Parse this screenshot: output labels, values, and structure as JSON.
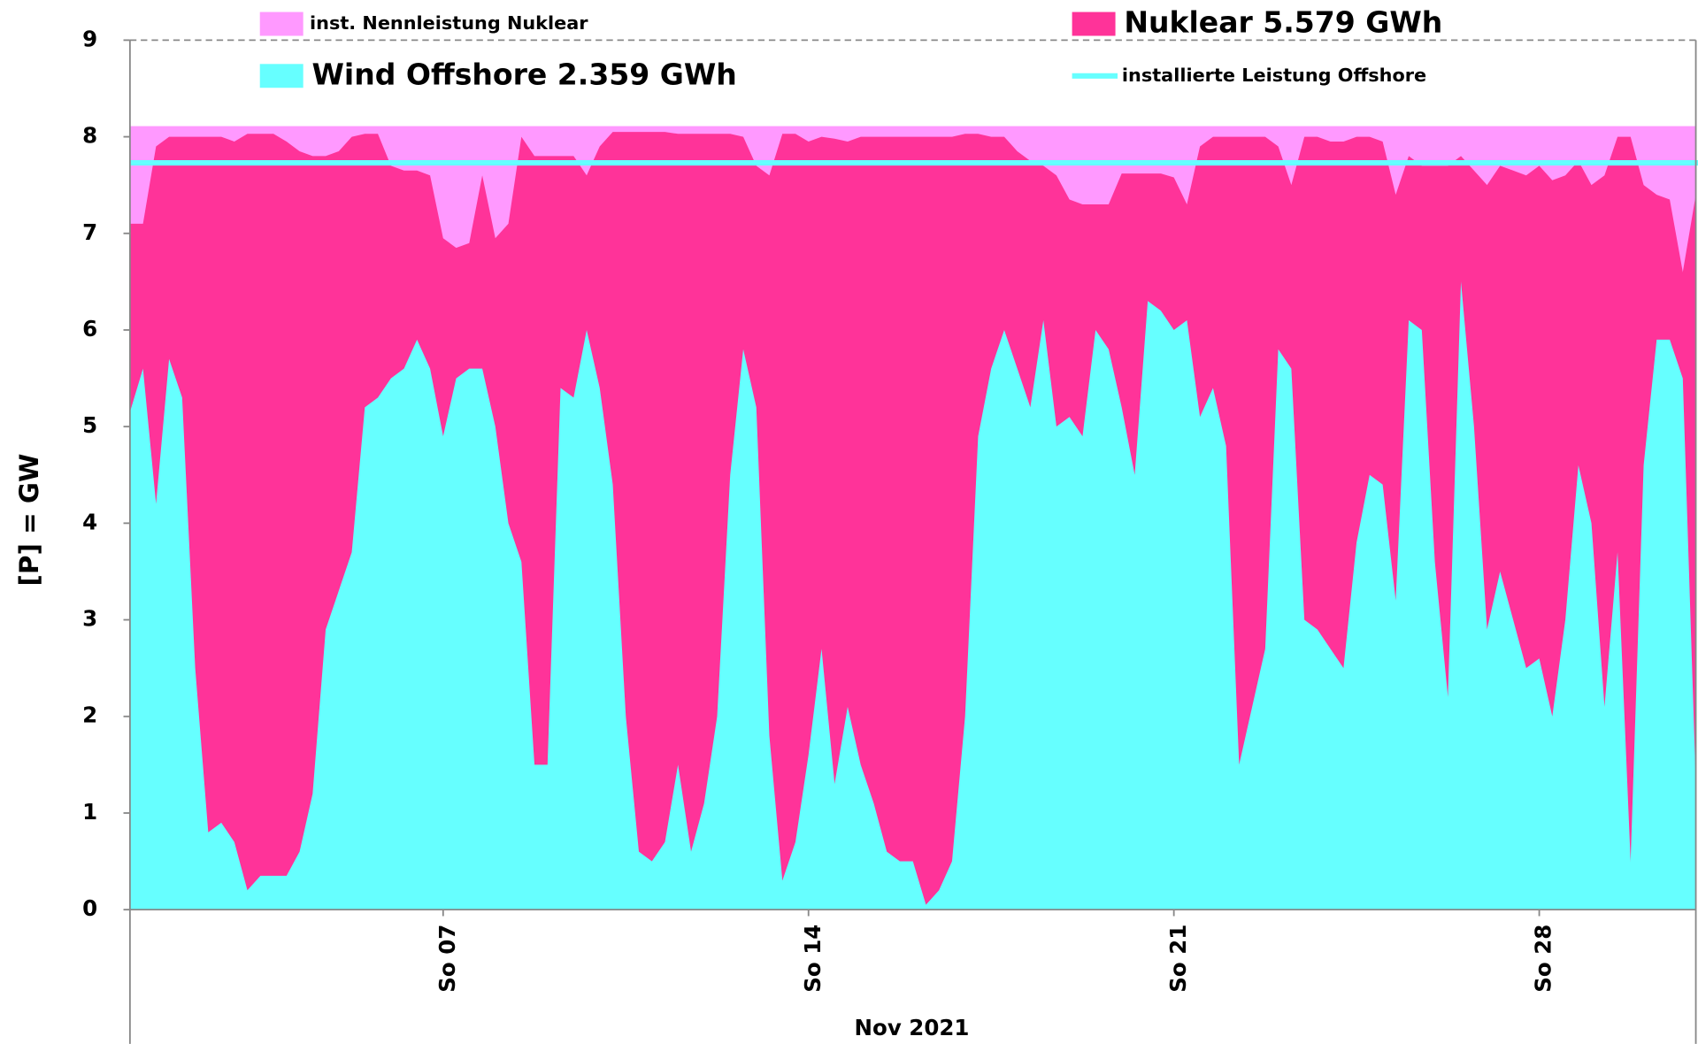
{
  "chart_data": {
    "type": "area",
    "xlabel": "Nov 2021",
    "ylabel": "[P]  =  GW",
    "xlim": [
      1,
      31
    ],
    "xticks": [
      {
        "value": 7,
        "label": "So 07"
      },
      {
        "value": 14,
        "label": "So 14"
      },
      {
        "value": 21,
        "label": "So 21"
      },
      {
        "value": 28,
        "label": "So 28"
      }
    ],
    "ylim": [
      0,
      9
    ],
    "yticks": [
      0,
      1,
      2,
      3,
      4,
      5,
      6,
      7,
      8,
      9
    ],
    "x": [
      1,
      1.25,
      1.5,
      1.75,
      2,
      2.25,
      2.5,
      2.75,
      3,
      3.25,
      3.5,
      3.75,
      4,
      4.25,
      4.5,
      4.75,
      5,
      5.25,
      5.5,
      5.75,
      6,
      6.25,
      6.5,
      6.75,
      7,
      7.25,
      7.5,
      7.75,
      8,
      8.25,
      8.5,
      8.75,
      9,
      9.25,
      9.5,
      9.75,
      10,
      10.25,
      10.5,
      10.75,
      11,
      11.25,
      11.5,
      11.75,
      12,
      12.25,
      12.5,
      12.75,
      13,
      13.25,
      13.5,
      13.75,
      14,
      14.25,
      14.5,
      14.75,
      15,
      15.25,
      15.5,
      15.75,
      16,
      16.25,
      16.5,
      16.75,
      17,
      17.25,
      17.5,
      17.75,
      18,
      18.25,
      18.5,
      18.75,
      19,
      19.25,
      19.5,
      19.75,
      20,
      20.25,
      20.5,
      20.75,
      21,
      21.25,
      21.5,
      21.75,
      22,
      22.25,
      22.5,
      22.75,
      23,
      23.25,
      23.5,
      23.75,
      24,
      24.25,
      24.5,
      24.75,
      25,
      25.25,
      25.5,
      25.75,
      26,
      26.25,
      26.5,
      26.75,
      27,
      27.25,
      27.5,
      27.75,
      28,
      28.25,
      28.5,
      28.75,
      29,
      29.25,
      29.5,
      29.75,
      30,
      30.25,
      30.5,
      30.75,
      31
    ],
    "series": [
      {
        "name": "inst. Nennleistung Nuklear",
        "color": "#ff99ff",
        "style": "band",
        "value": 8.11
      },
      {
        "name": "Nuklear 5.579 GWh",
        "color": "#ff3399",
        "style": "area",
        "values": [
          7.1,
          7.1,
          7.9,
          8.0,
          8.0,
          8.0,
          8.0,
          8.0,
          7.95,
          8.03,
          8.03,
          8.03,
          7.95,
          7.85,
          7.8,
          7.8,
          7.85,
          8.0,
          8.03,
          8.03,
          7.7,
          7.65,
          7.65,
          7.6,
          6.95,
          6.85,
          6.9,
          7.6,
          6.95,
          7.1,
          8.0,
          7.8,
          7.8,
          7.8,
          7.8,
          7.6,
          7.9,
          8.05,
          8.05,
          8.05,
          8.05,
          8.05,
          8.03,
          8.03,
          8.03,
          8.03,
          8.03,
          8.0,
          7.7,
          7.6,
          8.03,
          8.03,
          7.95,
          8.0,
          7.98,
          7.95,
          8.0,
          8.0,
          8.0,
          8.0,
          8.0,
          8.0,
          8.0,
          8.0,
          8.03,
          8.03,
          8.0,
          8.0,
          7.85,
          7.75,
          7.7,
          7.6,
          7.35,
          7.3,
          7.3,
          7.3,
          7.62,
          7.62,
          7.62,
          7.62,
          7.58,
          7.3,
          7.9,
          8.0,
          8.0,
          8.0,
          8.0,
          8.0,
          7.9,
          7.5,
          8.0,
          8.0,
          7.95,
          7.95,
          8.0,
          8.0,
          7.95,
          7.4,
          7.8,
          7.7,
          7.7,
          7.7,
          7.8,
          7.65,
          7.5,
          7.7,
          7.65,
          7.6,
          7.7,
          7.55,
          7.6,
          7.75,
          7.5,
          7.6,
          8.0,
          8.0,
          7.5,
          7.4,
          7.35,
          6.6,
          7.4
        ]
      },
      {
        "name": "Wind Offshore 2.359 GWh",
        "color": "#66ffff",
        "style": "area",
        "values": [
          5.15,
          5.6,
          4.2,
          5.7,
          5.3,
          2.5,
          0.8,
          0.9,
          0.7,
          0.2,
          0.35,
          0.35,
          0.35,
          0.6,
          1.2,
          2.9,
          3.3,
          3.7,
          5.2,
          5.3,
          5.5,
          5.6,
          5.9,
          5.6,
          4.9,
          5.5,
          5.6,
          5.6,
          5.0,
          4.0,
          3.6,
          1.5,
          1.5,
          5.4,
          5.3,
          6.0,
          5.4,
          4.4,
          2.0,
          0.6,
          0.5,
          0.7,
          1.5,
          0.6,
          1.1,
          2.0,
          4.5,
          5.8,
          5.2,
          1.8,
          0.3,
          0.7,
          1.6,
          2.7,
          1.3,
          2.1,
          1.5,
          1.1,
          0.6,
          0.5,
          0.5,
          0.05,
          0.2,
          0.5,
          2.0,
          4.9,
          5.6,
          6.0,
          5.6,
          5.2,
          6.1,
          5.0,
          5.1,
          4.9,
          6.0,
          5.8,
          5.2,
          4.5,
          6.3,
          6.2,
          6.0,
          6.1,
          5.1,
          5.4,
          4.8,
          1.5,
          2.1,
          2.7,
          5.8,
          5.6,
          3.0,
          2.9,
          2.7,
          2.5,
          3.8,
          4.5,
          4.4,
          3.2,
          6.1,
          6.0,
          3.6,
          2.2,
          6.5,
          5.0,
          2.9,
          3.5,
          3.0,
          2.5,
          2.6,
          2.0,
          3.0,
          4.6,
          4.0,
          2.1,
          3.7,
          0.5,
          4.6,
          5.9,
          5.9,
          5.5,
          1.3
        ]
      },
      {
        "name": "installierte Leistung Offshore",
        "color": "#66ffff",
        "style": "line",
        "value": 7.73
      }
    ]
  }
}
